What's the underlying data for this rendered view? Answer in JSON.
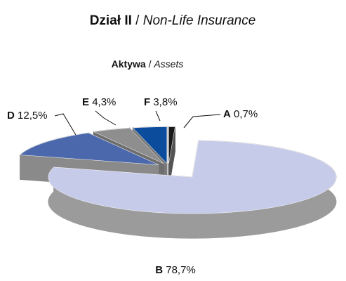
{
  "chart_data": {
    "type": "pie",
    "title": {
      "main": "Dział II",
      "separator": "/",
      "sub": "Non-Life Insurance"
    },
    "subtitle": {
      "main": "Aktywa",
      "separator": "/",
      "sub": "Assets"
    },
    "categories": [
      "A",
      "B",
      "D",
      "E",
      "F"
    ],
    "values": [
      0.7,
      78.7,
      12.5,
      4.3,
      3.8
    ],
    "value_labels": [
      "0,7%",
      "78,7%",
      "12,5%",
      "4,3%",
      "3,8%"
    ],
    "colors": [
      "#1a1a1a",
      "#c6cbea",
      "#4b68ad",
      "#8e8e8e",
      "#0b4d9c"
    ],
    "side_colors": [
      "#555555",
      "#9b9b9b",
      "#8a8a8a",
      "#6e6e6e",
      "#7a7a7a"
    ]
  }
}
